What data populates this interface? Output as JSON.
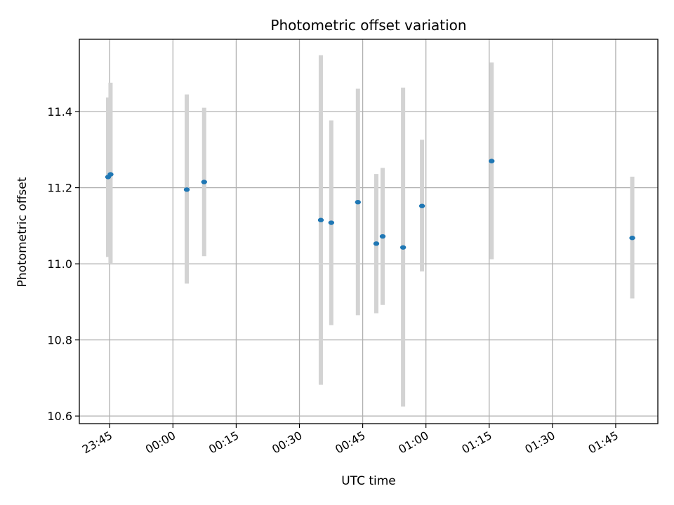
{
  "chart_data": {
    "type": "scatter",
    "title": "Photometric offset variation",
    "xlabel": "UTC time",
    "ylabel": "Photometric offset",
    "x_unit": "minutes relative to 00:00 UTC",
    "xlim": [
      -22.2,
      115.0
    ],
    "ylim": [
      10.58,
      11.59
    ],
    "xticks": [
      {
        "value": -15,
        "label": "23:45"
      },
      {
        "value": 0,
        "label": "00:00"
      },
      {
        "value": 15,
        "label": "00:15"
      },
      {
        "value": 30,
        "label": "00:30"
      },
      {
        "value": 45,
        "label": "00:45"
      },
      {
        "value": 60,
        "label": "01:00"
      },
      {
        "value": 75,
        "label": "01:15"
      },
      {
        "value": 90,
        "label": "01:30"
      },
      {
        "value": 105,
        "label": "01:45"
      }
    ],
    "yticks": [
      {
        "value": 10.6,
        "label": "10.6"
      },
      {
        "value": 10.8,
        "label": "10.8"
      },
      {
        "value": 11.0,
        "label": "11.0"
      },
      {
        "value": 11.2,
        "label": "11.2"
      },
      {
        "value": 11.4,
        "label": "11.4"
      }
    ],
    "grid": true,
    "colors": {
      "point": "#1f77b4",
      "errorbar": "#d3d3d3",
      "grid": "#b0b0b0"
    },
    "points": [
      {
        "time": "23:44:37",
        "x": -15.38,
        "y": 11.228,
        "y_low": 11.018,
        "y_high": 11.437
      },
      {
        "time": "23:45:12",
        "x": -14.8,
        "y": 11.235,
        "y_low": 11.0,
        "y_high": 11.476
      },
      {
        "time": "00:03:17",
        "x": 3.28,
        "y": 11.195,
        "y_low": 10.948,
        "y_high": 11.445
      },
      {
        "time": "00:07:24",
        "x": 7.4,
        "y": 11.215,
        "y_low": 11.02,
        "y_high": 11.41
      },
      {
        "time": "00:35:04",
        "x": 35.07,
        "y": 11.115,
        "y_low": 10.682,
        "y_high": 11.548
      },
      {
        "time": "00:37:33",
        "x": 37.55,
        "y": 11.108,
        "y_low": 10.839,
        "y_high": 11.377
      },
      {
        "time": "00:43:52",
        "x": 43.87,
        "y": 11.162,
        "y_low": 10.865,
        "y_high": 11.46
      },
      {
        "time": "00:48:14",
        "x": 48.23,
        "y": 11.053,
        "y_low": 10.87,
        "y_high": 11.236
      },
      {
        "time": "00:49:44",
        "x": 49.73,
        "y": 11.072,
        "y_low": 10.892,
        "y_high": 11.252
      },
      {
        "time": "00:54:35",
        "x": 54.58,
        "y": 11.043,
        "y_low": 10.625,
        "y_high": 11.463
      },
      {
        "time": "00:59:04",
        "x": 59.07,
        "y": 11.152,
        "y_low": 10.98,
        "y_high": 11.326
      },
      {
        "time": "01:15:35",
        "x": 75.58,
        "y": 11.27,
        "y_low": 11.012,
        "y_high": 11.529
      },
      {
        "time": "01:48:56",
        "x": 108.93,
        "y": 11.068,
        "y_low": 10.909,
        "y_high": 11.229
      }
    ]
  }
}
